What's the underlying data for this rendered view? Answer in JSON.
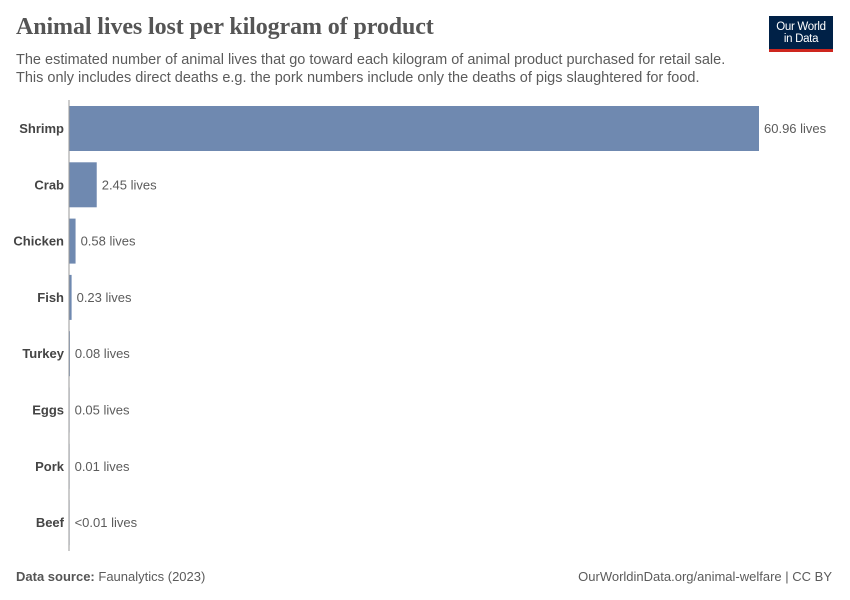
{
  "header": {
    "title": "Animal lives lost per kilogram of product",
    "subtitle_line1": "The estimated number of animal lives that go toward each kilogram of animal product purchased for retail sale.",
    "subtitle_line2": "This only includes direct deaths e.g. the pork numbers include only the deaths of pigs slaughtered for food."
  },
  "logo": {
    "line1": "Our World",
    "line2": "in Data"
  },
  "footer": {
    "source_label": "Data source:",
    "source_value": "Faunalytics (2023)",
    "credit": "OurWorldinData.org/animal-welfare | CC BY"
  },
  "colors": {
    "bar": "#6f89b0",
    "axis": "#999999",
    "text": "#5b5b5b",
    "label": "#444444"
  },
  "chart_data": {
    "type": "bar",
    "orientation": "horizontal",
    "categories": [
      "Shrimp",
      "Crab",
      "Chicken",
      "Fish",
      "Turkey",
      "Eggs",
      "Pork",
      "Beef"
    ],
    "values": [
      60.96,
      2.45,
      0.58,
      0.23,
      0.08,
      0.05,
      0.01,
      0.004
    ],
    "value_labels": [
      "60.96 lives",
      "2.45 lives",
      "0.58 lives",
      "0.23 lives",
      "0.08 lives",
      "0.05 lives",
      "0.01 lives",
      "<0.01 lives"
    ],
    "title": "Animal lives lost per kilogram of product",
    "xlabel": "",
    "ylabel": "",
    "xlim": [
      0,
      60.96
    ],
    "grid": false,
    "legend": "none"
  }
}
